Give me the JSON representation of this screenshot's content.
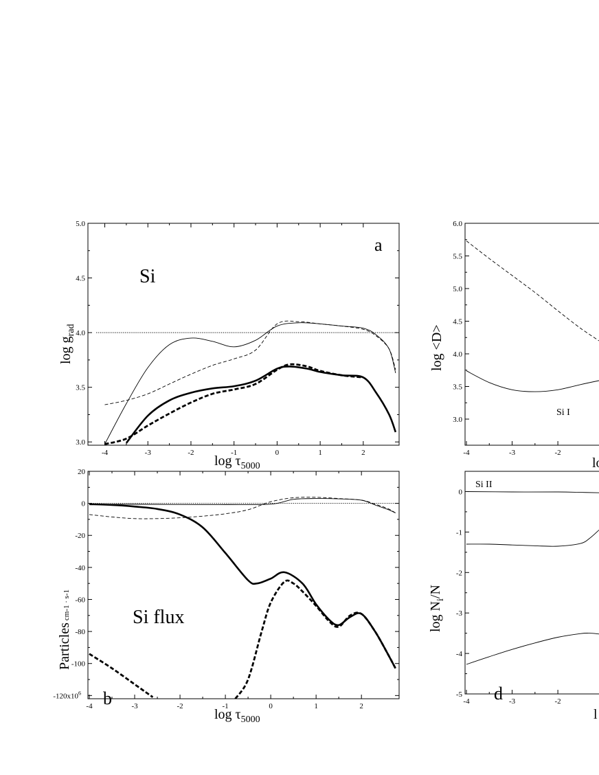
{
  "chart_data": [
    {
      "panel": "a",
      "type": "line",
      "panel_letter": "a",
      "label": "Si",
      "xlabel": "log τ5000",
      "ylabel": "log grad",
      "xlim": [
        -4.2,
        2.8
      ],
      "ylim": [
        2.97,
        5.0
      ],
      "xticks": [
        -4,
        -3,
        -2,
        -1,
        0,
        1,
        2
      ],
      "yticks": [
        3.0,
        3.5,
        4.0,
        4.5,
        5.0
      ],
      "tick_labels_y": [
        "3.0",
        "3.5",
        "4.0",
        "4.5",
        "5.0"
      ],
      "series": [
        {
          "style": "dotted-thin",
          "x": [
            -4.2,
            2.8
          ],
          "y": [
            4.0,
            4.0
          ]
        },
        {
          "style": "solid-thin",
          "x": [
            -4.0,
            -3.5,
            -3.0,
            -2.5,
            -2.0,
            -1.5,
            -1.0,
            -0.5,
            0.0,
            0.5,
            1.0,
            1.5,
            2.0,
            2.3,
            2.6,
            2.75
          ],
          "y": [
            2.98,
            3.35,
            3.68,
            3.89,
            3.95,
            3.92,
            3.87,
            3.93,
            4.06,
            4.09,
            4.08,
            4.06,
            4.04,
            3.98,
            3.85,
            3.63
          ]
        },
        {
          "style": "dashed-thin",
          "x": [
            -4.0,
            -3.5,
            -3.0,
            -2.5,
            -2.0,
            -1.5,
            -1.0,
            -0.5,
            0.0,
            0.5,
            1.0,
            1.5,
            2.0,
            2.3,
            2.6,
            2.75
          ],
          "y": [
            3.34,
            3.38,
            3.44,
            3.53,
            3.62,
            3.7,
            3.76,
            3.84,
            4.08,
            4.1,
            4.08,
            4.06,
            4.03,
            3.97,
            3.85,
            3.66
          ]
        },
        {
          "style": "solid-thick",
          "x": [
            -3.5,
            -3.0,
            -2.5,
            -2.0,
            -1.5,
            -1.0,
            -0.5,
            0.0,
            0.3,
            0.7,
            1.0,
            1.5,
            2.0,
            2.3,
            2.6,
            2.75
          ],
          "y": [
            2.99,
            3.24,
            3.38,
            3.45,
            3.49,
            3.51,
            3.56,
            3.67,
            3.69,
            3.67,
            3.64,
            3.61,
            3.59,
            3.45,
            3.25,
            3.09
          ]
        },
        {
          "style": "dashed-thick",
          "x": [
            -4.0,
            -3.5,
            -3.0,
            -2.5,
            -2.0,
            -1.5,
            -1.0,
            -0.5,
            0.0,
            0.3,
            0.7,
            1.0,
            1.5,
            2.0
          ],
          "y": [
            2.98,
            3.03,
            3.15,
            3.26,
            3.36,
            3.44,
            3.48,
            3.53,
            3.66,
            3.71,
            3.69,
            3.65,
            3.61,
            3.59
          ]
        }
      ]
    },
    {
      "panel": "b",
      "type": "line",
      "panel_letter": "b",
      "label": "Si flux",
      "xlabel": "log τ5000",
      "ylabel": "Particles",
      "ylabel_unit": "cm-1 · s-1",
      "xlim": [
        -4.0,
        2.8
      ],
      "ylim": [
        -122,
        20
      ],
      "xticks": [
        -4,
        -3,
        -2,
        -1,
        0,
        1,
        2
      ],
      "yticks": [
        -120,
        -100,
        -80,
        -60,
        -40,
        -20,
        0,
        20
      ],
      "tick_labels_y": [
        "-120x10",
        "-100",
        "-80",
        "-60",
        "-40",
        "-20",
        "0",
        "20"
      ],
      "tick_superscript": "6",
      "series": [
        {
          "style": "dotted-thin",
          "x": [
            -4.0,
            2.8
          ],
          "y": [
            0,
            0
          ]
        },
        {
          "style": "solid-thin",
          "x": [
            -4.0,
            -3.0,
            -2.0,
            -1.0,
            0.0,
            0.5,
            1.0,
            1.5,
            2.0,
            2.3,
            2.6,
            2.75
          ],
          "y": [
            -0.5,
            -0.6,
            -0.7,
            -0.8,
            -0.5,
            2.5,
            3.0,
            2.8,
            2.0,
            -1.0,
            -4.0,
            -6.0
          ]
        },
        {
          "style": "dashed-thin",
          "x": [
            -4.0,
            -3.5,
            -3.0,
            -2.5,
            -2.0,
            -1.5,
            -1.0,
            -0.5,
            0.0,
            0.5,
            1.0,
            1.5,
            2.0,
            2.3,
            2.6,
            2.75
          ],
          "y": [
            -7.0,
            -8.5,
            -9.5,
            -9.5,
            -9.0,
            -8.0,
            -6.5,
            -4.0,
            1.0,
            3.5,
            3.8,
            3.0,
            2.0,
            -0.5,
            -3.5,
            -6.0
          ]
        },
        {
          "style": "solid-thick",
          "x": [
            -4.0,
            -3.5,
            -3.0,
            -2.5,
            -2.0,
            -1.5,
            -1.0,
            -0.5,
            -0.3,
            0.0,
            0.3,
            0.7,
            1.0,
            1.3,
            1.5,
            1.75,
            2.0,
            2.3,
            2.6,
            2.75
          ],
          "y": [
            -0.5,
            -1.0,
            -2.0,
            -3.5,
            -7.0,
            -15.0,
            -31.0,
            -48.0,
            -50.0,
            -47.0,
            -43.0,
            -50.0,
            -63.0,
            -73.0,
            -76.0,
            -71.0,
            -69.0,
            -80.0,
            -95.0,
            -103.0
          ]
        },
        {
          "style": "dashed-thick",
          "segment": 1,
          "x": [
            -4.0,
            -3.5,
            -3.0,
            -2.6
          ],
          "y": [
            -94.0,
            -103.0,
            -113.0,
            -121.0
          ]
        },
        {
          "style": "dashed-thick",
          "segment": 2,
          "x": [
            -0.78,
            -0.5,
            -0.2,
            0.0,
            0.3,
            0.5,
            0.7,
            1.0,
            1.3,
            1.5,
            1.75,
            2.0,
            2.3,
            2.6,
            2.75
          ],
          "y": [
            -122.0,
            -110.0,
            -80.0,
            -62.0,
            -49.0,
            -50.0,
            -55.0,
            -64.0,
            -74.0,
            -77.0,
            -70.0,
            -69.0,
            -80.0,
            -95.0,
            -103.0
          ]
        }
      ]
    },
    {
      "panel": "c",
      "type": "line",
      "ylabel": "log <D>",
      "xlabel_partial": "lo",
      "xlim": [
        -4.0,
        -1.1
      ],
      "ylim": [
        2.6,
        6.0
      ],
      "xticks": [
        -4,
        -3,
        -2
      ],
      "yticks": [
        3.0,
        3.5,
        4.0,
        4.5,
        5.0,
        5.5,
        6.0
      ],
      "tick_labels_y": [
        "3.0",
        "3.5",
        "4.0",
        "4.5",
        "5.0",
        "5.5",
        "6.0"
      ],
      "series": [
        {
          "style": "dashed-thin",
          "x": [
            -4.0,
            -3.5,
            -3.0,
            -2.5,
            -2.0,
            -1.5,
            -1.1
          ],
          "y": [
            5.73,
            5.46,
            5.2,
            4.94,
            4.66,
            4.39,
            4.2
          ]
        },
        {
          "style": "solid-thin",
          "x": [
            -4.0,
            -3.5,
            -3.0,
            -2.5,
            -2.0,
            -1.5,
            -1.1
          ],
          "y": [
            3.74,
            3.56,
            3.45,
            3.42,
            3.45,
            3.53,
            3.59
          ]
        }
      ]
    },
    {
      "panel": "d",
      "type": "line",
      "panel_letter": "d",
      "ylabel": "log Ni/N",
      "xlabel_partial": "l",
      "xlim": [
        -4.0,
        -1.1
      ],
      "ylim": [
        -5.0,
        0.5
      ],
      "xticks": [
        -4,
        -3,
        -2
      ],
      "yticks": [
        -5,
        -4,
        -3,
        -2,
        -1,
        0
      ],
      "tick_labels_y": [
        "-5",
        "-4",
        "-3",
        "-2",
        "-1",
        "0"
      ],
      "annotations": [
        "Si II",
        "Si I"
      ],
      "series": [
        {
          "style": "solid-thin",
          "x": [
            -4.0,
            -3.0,
            -2.0,
            -1.5,
            -1.1
          ],
          "y": [
            0.0,
            -0.01,
            -0.01,
            -0.02,
            -0.03
          ]
        },
        {
          "style": "solid-thin",
          "x": [
            -4.0,
            -3.5,
            -3.0,
            -2.5,
            -2.0,
            -1.5,
            -1.3,
            -1.1
          ],
          "y": [
            -1.3,
            -1.3,
            -1.32,
            -1.34,
            -1.35,
            -1.28,
            -1.15,
            -0.95
          ]
        },
        {
          "style": "solid-thin",
          "x": [
            -4.0,
            -3.5,
            -3.0,
            -2.5,
            -2.0,
            -1.5,
            -1.3,
            -1.1
          ],
          "y": [
            -4.27,
            -4.08,
            -3.9,
            -3.74,
            -3.6,
            -3.51,
            -3.5,
            -3.52
          ]
        }
      ]
    }
  ]
}
